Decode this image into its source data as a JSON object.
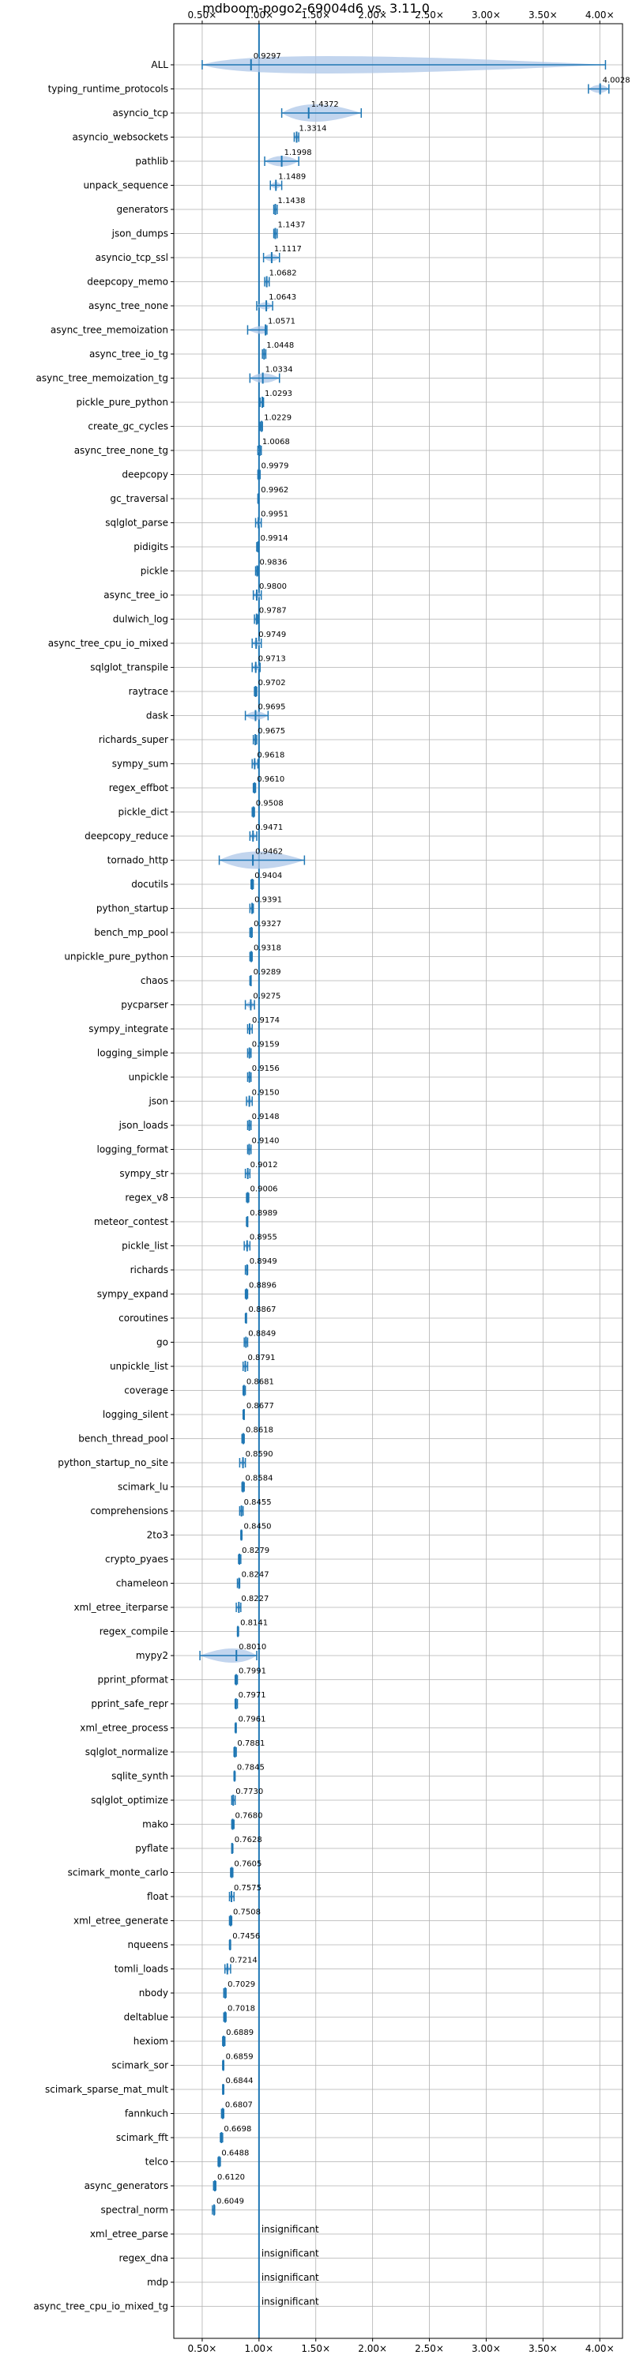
{
  "chart_data": {
    "type": "violin",
    "title": "mdboom-pogo2-69004d6 vs. 3.11.0",
    "xlim": [
      0.25,
      4.2
    ],
    "x_ticks": [
      0.5,
      1.0,
      1.5,
      2.0,
      2.5,
      3.0,
      3.5,
      4.0
    ],
    "x_tick_labels": [
      "0.50×",
      "1.00×",
      "1.50×",
      "2.00×",
      "2.50×",
      "3.00×",
      "3.50×",
      "4.00×"
    ],
    "reference_line": 1.0,
    "grid": true,
    "categories": [
      "ALL",
      "typing_runtime_protocols",
      "asyncio_tcp",
      "asyncio_websockets",
      "pathlib",
      "unpack_sequence",
      "generators",
      "json_dumps",
      "asyncio_tcp_ssl",
      "deepcopy_memo",
      "async_tree_none",
      "async_tree_memoization",
      "async_tree_io_tg",
      "async_tree_memoization_tg",
      "pickle_pure_python",
      "create_gc_cycles",
      "async_tree_none_tg",
      "deepcopy",
      "gc_traversal",
      "sqlglot_parse",
      "pidigits",
      "pickle",
      "async_tree_io",
      "dulwich_log",
      "async_tree_cpu_io_mixed",
      "sqlglot_transpile",
      "raytrace",
      "dask",
      "richards_super",
      "sympy_sum",
      "regex_effbot",
      "pickle_dict",
      "deepcopy_reduce",
      "tornado_http",
      "docutils",
      "python_startup",
      "bench_mp_pool",
      "unpickle_pure_python",
      "chaos",
      "pycparser",
      "sympy_integrate",
      "logging_simple",
      "unpickle",
      "json",
      "json_loads",
      "logging_format",
      "sympy_str",
      "regex_v8",
      "meteor_contest",
      "pickle_list",
      "richards",
      "sympy_expand",
      "coroutines",
      "go",
      "unpickle_list",
      "coverage",
      "logging_silent",
      "bench_thread_pool",
      "python_startup_no_site",
      "scimark_lu",
      "comprehensions",
      "2to3",
      "crypto_pyaes",
      "chameleon",
      "xml_etree_iterparse",
      "regex_compile",
      "mypy2",
      "pprint_pformat",
      "pprint_safe_repr",
      "xml_etree_process",
      "sqlglot_normalize",
      "sqlite_synth",
      "sqlglot_optimize",
      "mako",
      "pyflate",
      "scimark_monte_carlo",
      "float",
      "xml_etree_generate",
      "nqueens",
      "tomli_loads",
      "nbody",
      "deltablue",
      "hexiom",
      "scimark_sor",
      "scimark_sparse_mat_mult",
      "fannkuch",
      "scimark_fft",
      "telco",
      "async_generators",
      "spectral_norm",
      "xml_etree_parse",
      "regex_dna",
      "mdp",
      "async_tree_cpu_io_mixed_tg"
    ],
    "values": [
      0.9297,
      4.0028,
      1.4372,
      1.3314,
      1.1998,
      1.1489,
      1.1438,
      1.1437,
      1.1117,
      1.0682,
      1.0643,
      1.0571,
      1.0448,
      1.0334,
      1.0293,
      1.0229,
      1.0068,
      0.9979,
      0.9962,
      0.9951,
      0.9914,
      0.9836,
      0.98,
      0.9787,
      0.9749,
      0.9713,
      0.9702,
      0.9695,
      0.9675,
      0.9618,
      0.961,
      0.9508,
      0.9471,
      0.9462,
      0.9404,
      0.9391,
      0.9327,
      0.9318,
      0.9289,
      0.9275,
      0.9174,
      0.9159,
      0.9156,
      0.915,
      0.9148,
      0.914,
      0.9012,
      0.9006,
      0.8989,
      0.8955,
      0.8949,
      0.8896,
      0.8867,
      0.8849,
      0.8791,
      0.8681,
      0.8677,
      0.8618,
      0.859,
      0.8584,
      0.8455,
      0.845,
      0.8279,
      0.8247,
      0.8227,
      0.8141,
      0.801,
      0.7991,
      0.7971,
      0.7961,
      0.7881,
      0.7845,
      0.773,
      0.768,
      0.7628,
      0.7605,
      0.7575,
      0.7508,
      0.7456,
      0.7214,
      0.7029,
      0.7018,
      0.6889,
      0.6859,
      0.6844,
      0.6807,
      0.6698,
      0.6488,
      0.612,
      0.6049,
      null,
      null,
      null,
      null
    ],
    "value_labels": [
      "0.9297",
      "4.0028",
      "1.4372",
      "1.3314",
      "1.1998",
      "1.1489",
      "1.1438",
      "1.1437",
      "1.1117",
      "1.0682",
      "1.0643",
      "1.0571",
      "1.0448",
      "1.0334",
      "1.0293",
      "1.0229",
      "1.0068",
      "0.9979",
      "0.9962",
      "0.9951",
      "0.9914",
      "0.9836",
      "0.9800",
      "0.9787",
      "0.9749",
      "0.9713",
      "0.9702",
      "0.9695",
      "0.9675",
      "0.9618",
      "0.9610",
      "0.9508",
      "0.9471",
      "0.9462",
      "0.9404",
      "0.9391",
      "0.9327",
      "0.9318",
      "0.9289",
      "0.9275",
      "0.9174",
      "0.9159",
      "0.9156",
      "0.9150",
      "0.9148",
      "0.9140",
      "0.9012",
      "0.9006",
      "0.8989",
      "0.8955",
      "0.8949",
      "0.8896",
      "0.8867",
      "0.8849",
      "0.8791",
      "0.8681",
      "0.8677",
      "0.8618",
      "0.8590",
      "0.8584",
      "0.8455",
      "0.8450",
      "0.8279",
      "0.8247",
      "0.8227",
      "0.8141",
      "0.8010",
      "0.7991",
      "0.7971",
      "0.7961",
      "0.7881",
      "0.7845",
      "0.7730",
      "0.7680",
      "0.7628",
      "0.7605",
      "0.7575",
      "0.7508",
      "0.7456",
      "0.7214",
      "0.7029",
      "0.7018",
      "0.6889",
      "0.6859",
      "0.6844",
      "0.6807",
      "0.6698",
      "0.6488",
      "0.6120",
      "0.6049",
      "insignificant",
      "insignificant",
      "insignificant",
      "insignificant"
    ],
    "ranges": [
      [
        0.5,
        4.05
      ],
      [
        3.9,
        4.08
      ],
      [
        1.2,
        1.9
      ],
      [
        1.31,
        1.35
      ],
      [
        1.05,
        1.35
      ],
      [
        1.1,
        1.2
      ],
      [
        1.13,
        1.16
      ],
      [
        1.13,
        1.16
      ],
      [
        1.04,
        1.18
      ],
      [
        1.05,
        1.09
      ],
      [
        0.98,
        1.12
      ],
      [
        0.9,
        1.07
      ],
      [
        1.03,
        1.06
      ],
      [
        0.92,
        1.18
      ],
      [
        1.01,
        1.04
      ],
      [
        1.01,
        1.03
      ],
      [
        0.99,
        1.02
      ],
      [
        0.99,
        1.01
      ],
      [
        0.99,
        1.0
      ],
      [
        0.97,
        1.02
      ],
      [
        0.98,
        1.0
      ],
      [
        0.97,
        0.99
      ],
      [
        0.95,
        1.02
      ],
      [
        0.96,
        0.99
      ],
      [
        0.94,
        1.02
      ],
      [
        0.94,
        1.01
      ],
      [
        0.96,
        0.98
      ],
      [
        0.88,
        1.08
      ],
      [
        0.95,
        0.98
      ],
      [
        0.94,
        0.99
      ],
      [
        0.95,
        0.97
      ],
      [
        0.94,
        0.96
      ],
      [
        0.92,
        0.98
      ],
      [
        0.65,
        1.4
      ],
      [
        0.93,
        0.95
      ],
      [
        0.92,
        0.95
      ],
      [
        0.92,
        0.94
      ],
      [
        0.92,
        0.94
      ],
      [
        0.92,
        0.93
      ],
      [
        0.88,
        0.96
      ],
      [
        0.9,
        0.94
      ],
      [
        0.9,
        0.93
      ],
      [
        0.9,
        0.93
      ],
      [
        0.89,
        0.94
      ],
      [
        0.9,
        0.93
      ],
      [
        0.9,
        0.93
      ],
      [
        0.88,
        0.92
      ],
      [
        0.89,
        0.91
      ],
      [
        0.89,
        0.9
      ],
      [
        0.87,
        0.92
      ],
      [
        0.88,
        0.9
      ],
      [
        0.88,
        0.9
      ],
      [
        0.88,
        0.89
      ],
      [
        0.87,
        0.9
      ],
      [
        0.86,
        0.9
      ],
      [
        0.86,
        0.88
      ],
      [
        0.86,
        0.87
      ],
      [
        0.85,
        0.87
      ],
      [
        0.83,
        0.88
      ],
      [
        0.85,
        0.87
      ],
      [
        0.83,
        0.86
      ],
      [
        0.84,
        0.85
      ],
      [
        0.82,
        0.84
      ],
      [
        0.81,
        0.83
      ],
      [
        0.8,
        0.84
      ],
      [
        0.81,
        0.82
      ],
      [
        0.48,
        0.98
      ],
      [
        0.79,
        0.81
      ],
      [
        0.79,
        0.81
      ],
      [
        0.79,
        0.8
      ],
      [
        0.78,
        0.8
      ],
      [
        0.78,
        0.79
      ],
      [
        0.76,
        0.79
      ],
      [
        0.76,
        0.78
      ],
      [
        0.76,
        0.77
      ],
      [
        0.75,
        0.77
      ],
      [
        0.74,
        0.78
      ],
      [
        0.74,
        0.76
      ],
      [
        0.74,
        0.75
      ],
      [
        0.7,
        0.75
      ],
      [
        0.69,
        0.71
      ],
      [
        0.69,
        0.71
      ],
      [
        0.68,
        0.7
      ],
      [
        0.68,
        0.69
      ],
      [
        0.68,
        0.69
      ],
      [
        0.67,
        0.69
      ],
      [
        0.66,
        0.68
      ],
      [
        0.64,
        0.66
      ],
      [
        0.6,
        0.62
      ],
      [
        0.59,
        0.61
      ],
      [
        null,
        null
      ],
      [
        null,
        null
      ],
      [
        null,
        null
      ],
      [
        null,
        null
      ]
    ],
    "color": "#1f77b4",
    "violin_color": "#aec7e8",
    "reference_color": "#1f77b4"
  }
}
